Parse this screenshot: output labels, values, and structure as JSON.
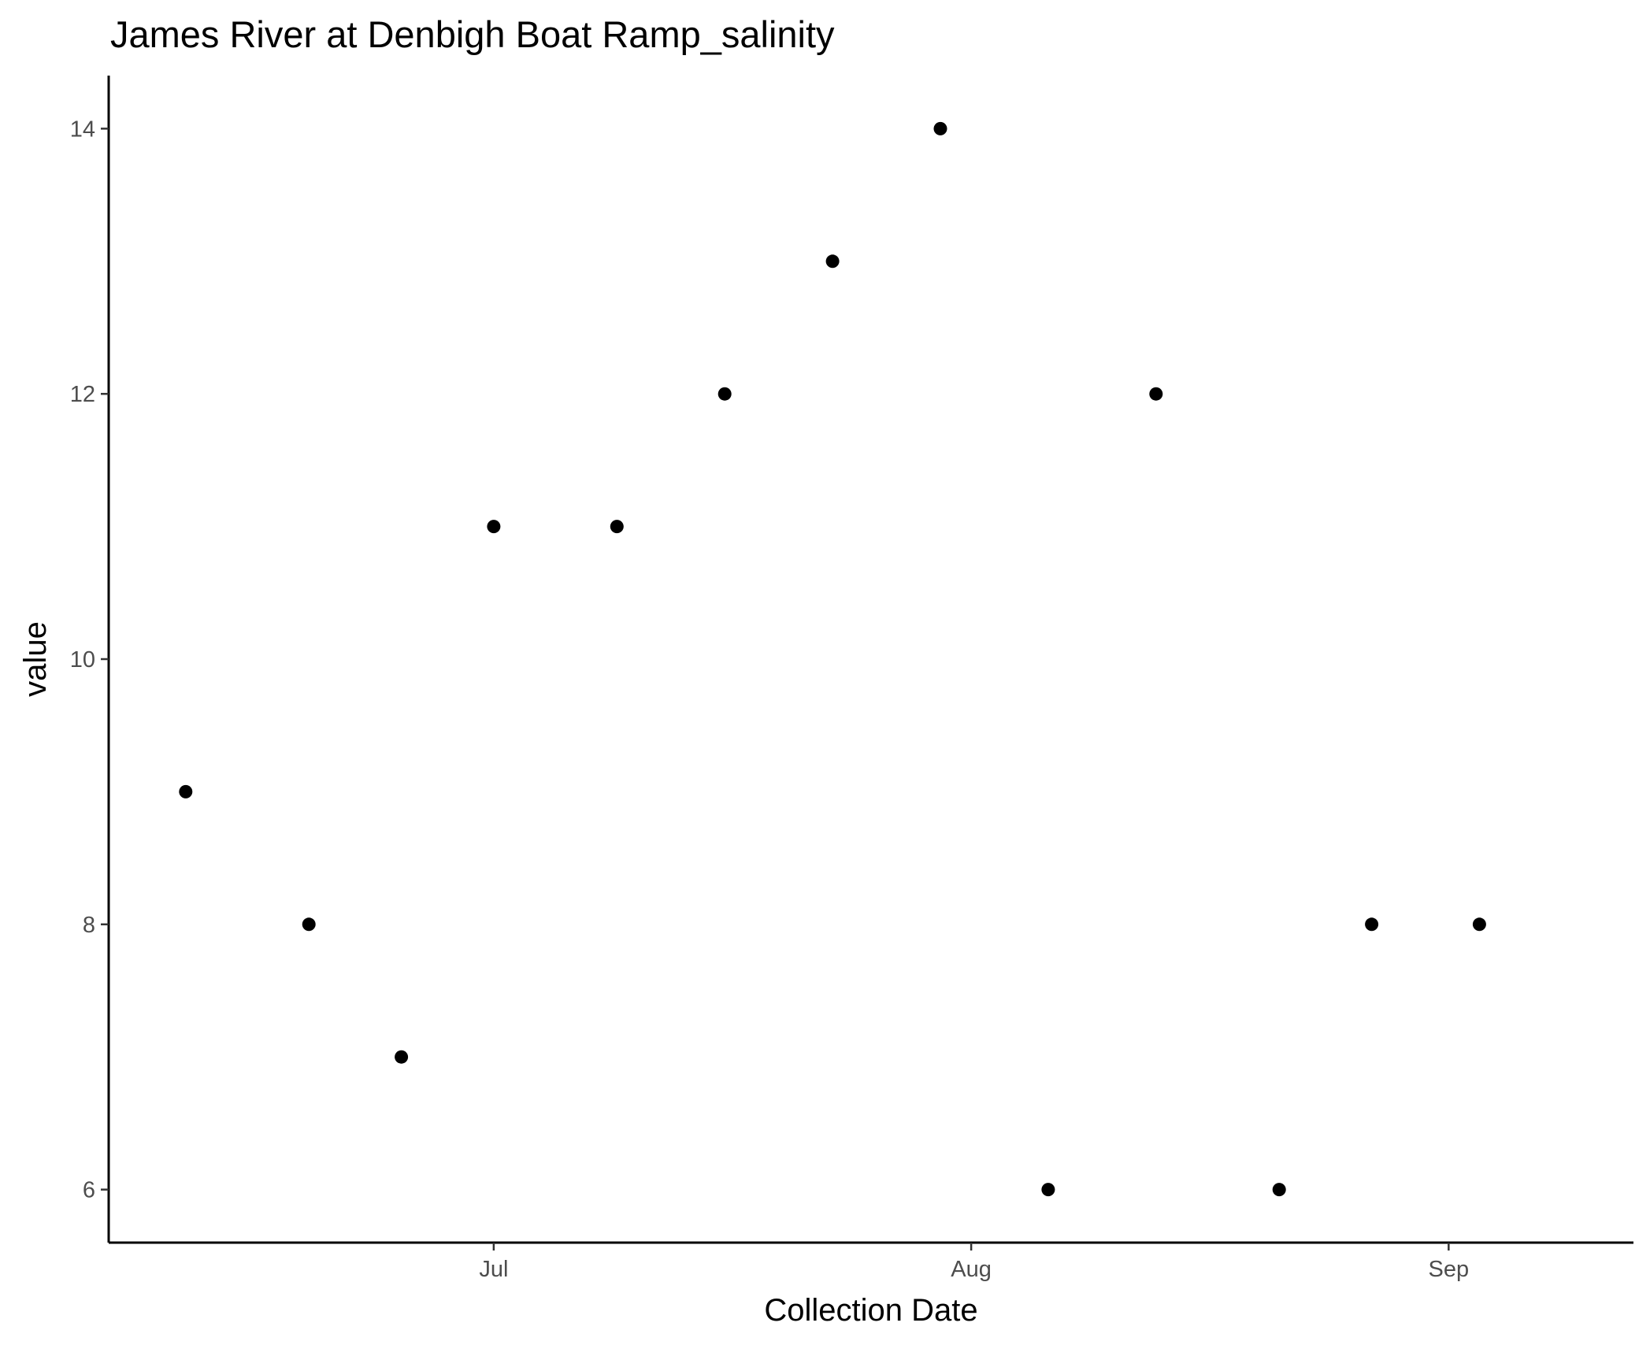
{
  "chart_data": {
    "type": "scatter",
    "title": "James River at Denbigh Boat Ramp_salinity",
    "xlabel": "Collection Date",
    "ylabel": "value",
    "x_type": "date",
    "xlim": [
      "2023-06-06",
      "2023-09-13"
    ],
    "ylim": [
      5.6,
      14.4
    ],
    "x_ticks": [
      {
        "value": "2023-07-01",
        "label": "Jul"
      },
      {
        "value": "2023-08-01",
        "label": "Aug"
      },
      {
        "value": "2023-09-01",
        "label": "Sep"
      }
    ],
    "y_ticks": [
      6,
      8,
      10,
      12,
      14
    ],
    "grid": false,
    "legend": "none",
    "point_color": "#000000",
    "points": [
      {
        "x": "2023-06-11",
        "y": 9
      },
      {
        "x": "2023-06-19",
        "y": 8
      },
      {
        "x": "2023-06-25",
        "y": 7
      },
      {
        "x": "2023-07-01",
        "y": 11
      },
      {
        "x": "2023-07-09",
        "y": 11
      },
      {
        "x": "2023-07-16",
        "y": 12
      },
      {
        "x": "2023-07-23",
        "y": 13
      },
      {
        "x": "2023-07-30",
        "y": 14
      },
      {
        "x": "2023-08-06",
        "y": 6
      },
      {
        "x": "2023-08-13",
        "y": 12
      },
      {
        "x": "2023-08-21",
        "y": 6
      },
      {
        "x": "2023-08-27",
        "y": 8
      },
      {
        "x": "2023-09-03",
        "y": 8
      }
    ]
  }
}
